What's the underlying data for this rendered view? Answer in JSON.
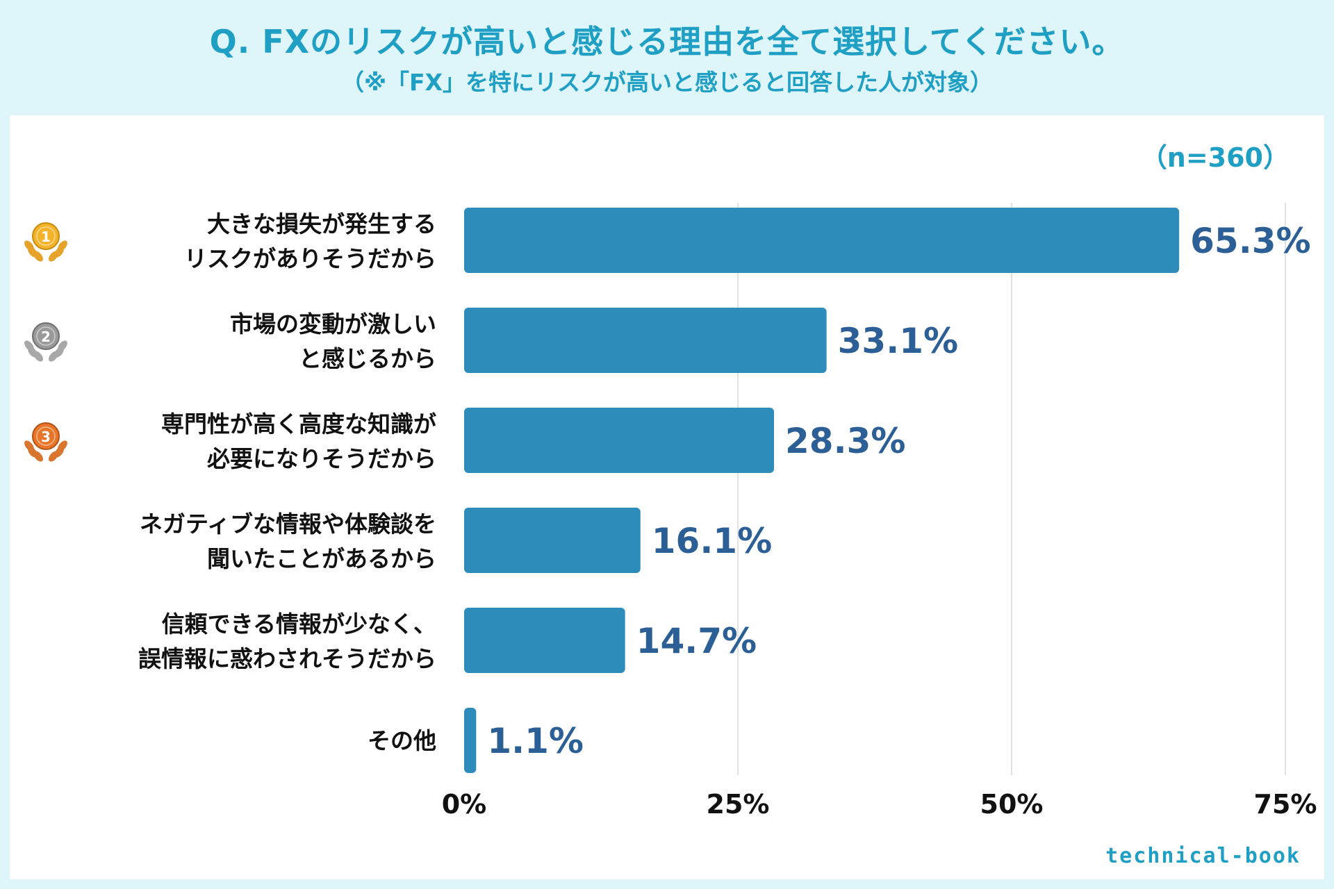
{
  "header": {
    "title": "Q. FXのリスクが高いと感じる理由を全て選択してください。",
    "subtitle": "（※「FX」を特にリスクが高いと感じると回答した人が対象）"
  },
  "sample_size": "（n=360）",
  "brand": "technical-book",
  "colors": {
    "bar": "#2e8cba",
    "value_text": "#2c5f96",
    "accent": "#1f9fc4",
    "background": "#def5f9"
  },
  "chart_data": {
    "type": "bar",
    "orientation": "horizontal",
    "categories": [
      [
        "大きな損失が発生する",
        "リスクがありそうだから"
      ],
      [
        "市場の変動が激しい",
        "と感じるから"
      ],
      [
        "専門性が高く高度な知識が",
        "必要になりそうだから"
      ],
      [
        "ネガティブな情報や体験談を",
        "聞いたことがあるから"
      ],
      [
        "信頼できる情報が少なく、",
        "誤情報に惑わされそうだから"
      ],
      [
        "その他"
      ]
    ],
    "values": [
      65.3,
      33.1,
      28.3,
      16.1,
      14.7,
      1.1
    ],
    "value_labels": [
      "65.3%",
      "33.1%",
      "28.3%",
      "16.1%",
      "14.7%",
      "1.1%"
    ],
    "ranks": [
      "1",
      "2",
      "3"
    ],
    "rank_medals": [
      "gold",
      "silver",
      "bronze"
    ],
    "xlim": [
      0,
      75
    ],
    "xticks": [
      0,
      25,
      50,
      75
    ],
    "xtick_labels": [
      "0%",
      "25%",
      "50%",
      "75%"
    ],
    "grid": true,
    "title": "",
    "xlabel": "",
    "ylabel": ""
  }
}
